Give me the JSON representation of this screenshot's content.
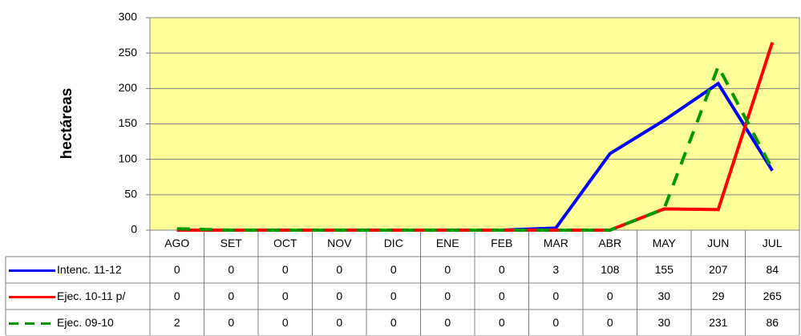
{
  "chart_data": {
    "type": "line",
    "y_label": "hectáreas",
    "categories": [
      "AGO",
      "SET",
      "OCT",
      "NOV",
      "DIC",
      "ENE",
      "FEB",
      "MAR",
      "ABR",
      "MAY",
      "JUN",
      "JUL"
    ],
    "series": [
      {
        "name": "Intenc. 11-12",
        "color": "#0000ff",
        "line_style": "solid",
        "values": [
          0,
          0,
          0,
          0,
          0,
          0,
          0,
          3,
          108,
          155,
          207,
          84
        ]
      },
      {
        "name": "Ejec. 10-11 p/",
        "color": "#ff0000",
        "line_style": "solid",
        "values": [
          0,
          0,
          0,
          0,
          0,
          0,
          0,
          0,
          0,
          30,
          29,
          265
        ]
      },
      {
        "name": "Ejec. 09-10",
        "color": "#009900",
        "line_style": "dashed",
        "values": [
          2,
          0,
          0,
          0,
          0,
          0,
          0,
          0,
          0,
          30,
          231,
          86
        ]
      }
    ],
    "ylim": [
      0,
      300
    ],
    "yticks": [
      0,
      50,
      100,
      150,
      200,
      250,
      300
    ],
    "grid": true,
    "plot_background": "#ffff99",
    "data_table": true
  }
}
